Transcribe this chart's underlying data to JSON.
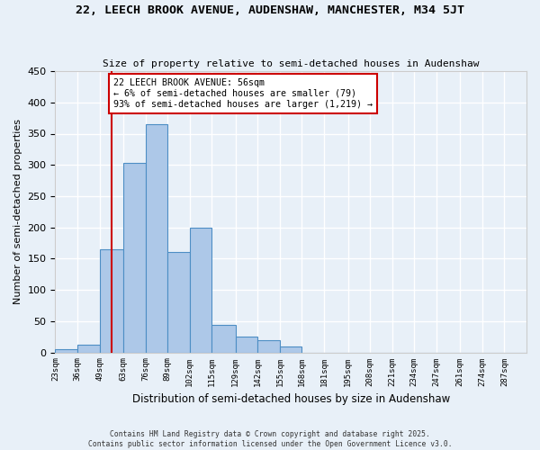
{
  "title_line1": "22, LEECH BROOK AVENUE, AUDENSHAW, MANCHESTER, M34 5JT",
  "title_line2": "Size of property relative to semi-detached houses in Audenshaw",
  "xlabel": "Distribution of semi-detached houses by size in Audenshaw",
  "ylabel": "Number of semi-detached properties",
  "bin_labels": [
    "23sqm",
    "36sqm",
    "49sqm",
    "63sqm",
    "76sqm",
    "89sqm",
    "102sqm",
    "115sqm",
    "129sqm",
    "142sqm",
    "155sqm",
    "168sqm",
    "181sqm",
    "195sqm",
    "208sqm",
    "221sqm",
    "234sqm",
    "247sqm",
    "261sqm",
    "274sqm",
    "287sqm"
  ],
  "bin_edges": [
    23,
    36,
    49,
    63,
    76,
    89,
    102,
    115,
    129,
    142,
    155,
    168,
    181,
    195,
    208,
    221,
    234,
    247,
    261,
    274,
    287,
    300
  ],
  "bar_heights": [
    5,
    13,
    165,
    303,
    365,
    160,
    200,
    44,
    25,
    19,
    10,
    0,
    0,
    0,
    0,
    0,
    0,
    0,
    0,
    0,
    0
  ],
  "bar_color": "#adc8e8",
  "bar_edge_color": "#4d8ec4",
  "vline_x": 56,
  "vline_color": "#cc0000",
  "annotation_title": "22 LEECH BROOK AVENUE: 56sqm",
  "annotation_line2": "← 6% of semi-detached houses are smaller (79)",
  "annotation_line3": "93% of semi-detached houses are larger (1,219) →",
  "annotation_box_color": "#cc0000",
  "ylim": [
    0,
    450
  ],
  "yticks": [
    0,
    50,
    100,
    150,
    200,
    250,
    300,
    350,
    400,
    450
  ],
  "footnote1": "Contains HM Land Registry data © Crown copyright and database right 2025.",
  "footnote2": "Contains public sector information licensed under the Open Government Licence v3.0.",
  "bg_color": "#e8f0f8",
  "grid_color": "#ffffff"
}
